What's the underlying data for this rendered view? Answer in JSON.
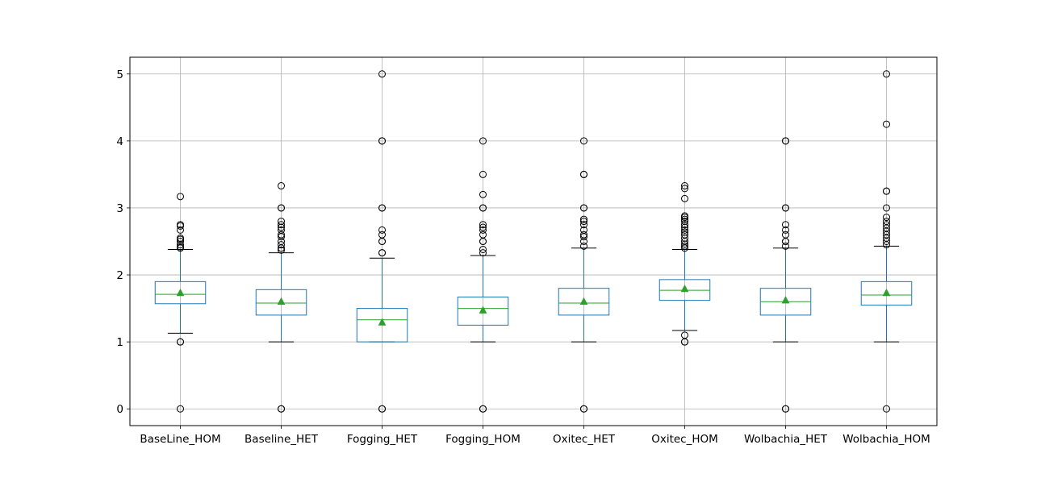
{
  "chart_data": {
    "type": "boxplot",
    "title": "",
    "xlabel": "",
    "ylabel": "",
    "ylim": [
      -0.25,
      5.25
    ],
    "yticks": [
      0,
      1,
      2,
      3,
      4,
      5
    ],
    "grid": true,
    "categories": [
      "BaseLine_HOM",
      "Baseline_HET",
      "Fogging_HET",
      "Fogging_HOM",
      "Oxitec_HET",
      "Oxitec_HOM",
      "Wolbachia_HET",
      "Wolbachia_HOM"
    ],
    "boxes": [
      {
        "whisker_low": 1.13,
        "q1": 1.57,
        "median": 1.71,
        "q3": 1.9,
        "whisker_high": 2.38,
        "mean": 1.73,
        "outliers": [
          0,
          1.0,
          1.0,
          2.4,
          2.42,
          2.45,
          2.5,
          2.53,
          2.55,
          2.67,
          2.73,
          2.75,
          3.17
        ]
      },
      {
        "whisker_low": 1.0,
        "q1": 1.4,
        "median": 1.58,
        "q3": 1.78,
        "whisker_high": 2.33,
        "mean": 1.6,
        "outliers": [
          0,
          0,
          2.37,
          2.4,
          2.45,
          2.5,
          2.57,
          2.6,
          2.67,
          2.71,
          2.75,
          2.8,
          3.0,
          3.0,
          3.33
        ]
      },
      {
        "whisker_low": 1.0,
        "q1": 1.0,
        "median": 1.33,
        "q3": 1.5,
        "whisker_high": 2.25,
        "mean": 1.29,
        "outliers": [
          0,
          0,
          2.33,
          2.33,
          2.5,
          2.5,
          2.6,
          2.67,
          3.0,
          3.0,
          4.0,
          4.0,
          5.0
        ]
      },
      {
        "whisker_low": 1.0,
        "q1": 1.25,
        "median": 1.5,
        "q3": 1.67,
        "whisker_high": 2.29,
        "mean": 1.47,
        "outliers": [
          0,
          0,
          2.33,
          2.38,
          2.5,
          2.5,
          2.6,
          2.67,
          2.71,
          2.75,
          3.0,
          3.0,
          3.2,
          3.5,
          4.0
        ]
      },
      {
        "whisker_low": 1.0,
        "q1": 1.4,
        "median": 1.58,
        "q3": 1.8,
        "whisker_high": 2.4,
        "mean": 1.6,
        "outliers": [
          0,
          0,
          2.43,
          2.5,
          2.57,
          2.6,
          2.67,
          2.75,
          2.8,
          2.83,
          3.0,
          3.0,
          3.5,
          3.5,
          4.0
        ]
      },
      {
        "whisker_low": 1.17,
        "q1": 1.62,
        "median": 1.77,
        "q3": 1.93,
        "whisker_high": 2.38,
        "mean": 1.79,
        "outliers": [
          1.0,
          1.0,
          1.1,
          2.4,
          2.43,
          2.46,
          2.5,
          2.55,
          2.6,
          2.64,
          2.67,
          2.71,
          2.75,
          2.8,
          2.83,
          2.86,
          2.88,
          3.14,
          3.29,
          3.33
        ]
      },
      {
        "whisker_low": 1.0,
        "q1": 1.4,
        "median": 1.6,
        "q3": 1.8,
        "whisker_high": 2.4,
        "mean": 1.62,
        "outliers": [
          0,
          0,
          2.43,
          2.5,
          2.5,
          2.6,
          2.67,
          2.75,
          3.0,
          3.0,
          4.0,
          4.0
        ]
      },
      {
        "whisker_low": 1.0,
        "q1": 1.55,
        "median": 1.7,
        "q3": 1.9,
        "whisker_high": 2.43,
        "mean": 1.73,
        "outliers": [
          0,
          2.45,
          2.5,
          2.55,
          2.6,
          2.65,
          2.7,
          2.75,
          2.8,
          2.86,
          3.0,
          3.25,
          3.25,
          4.25,
          5.0
        ]
      }
    ],
    "colors": {
      "box": "#1f77b4",
      "median": "#2ca02c",
      "mean_marker": "#2ca02c",
      "whisker_cap": "#000000",
      "outlier": "#000000",
      "grid": "#b0b0b0"
    }
  }
}
